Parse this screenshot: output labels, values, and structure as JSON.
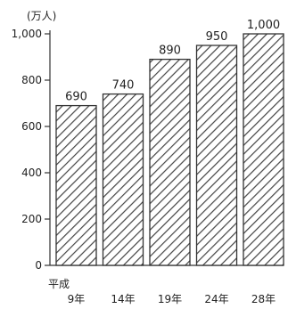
{
  "chart_data": {
    "type": "bar",
    "unit_label": "(万人)",
    "era_label": "平成",
    "categories": [
      "9年",
      "14年",
      "19年",
      "24年",
      "28年"
    ],
    "values": [
      690,
      740,
      890,
      950,
      1000
    ],
    "data_labels": [
      "690",
      "740",
      "890",
      "950",
      "1,000"
    ],
    "yticks": [
      0,
      200,
      400,
      600,
      800,
      1000
    ],
    "ytick_labels": [
      "0",
      "200",
      "400",
      "600",
      "800",
      "1,000"
    ],
    "ylim": [
      0,
      1000
    ],
    "bar_fill": "diagonal-hatch",
    "bar_color": "#333333",
    "grid": false,
    "legend": "none"
  }
}
